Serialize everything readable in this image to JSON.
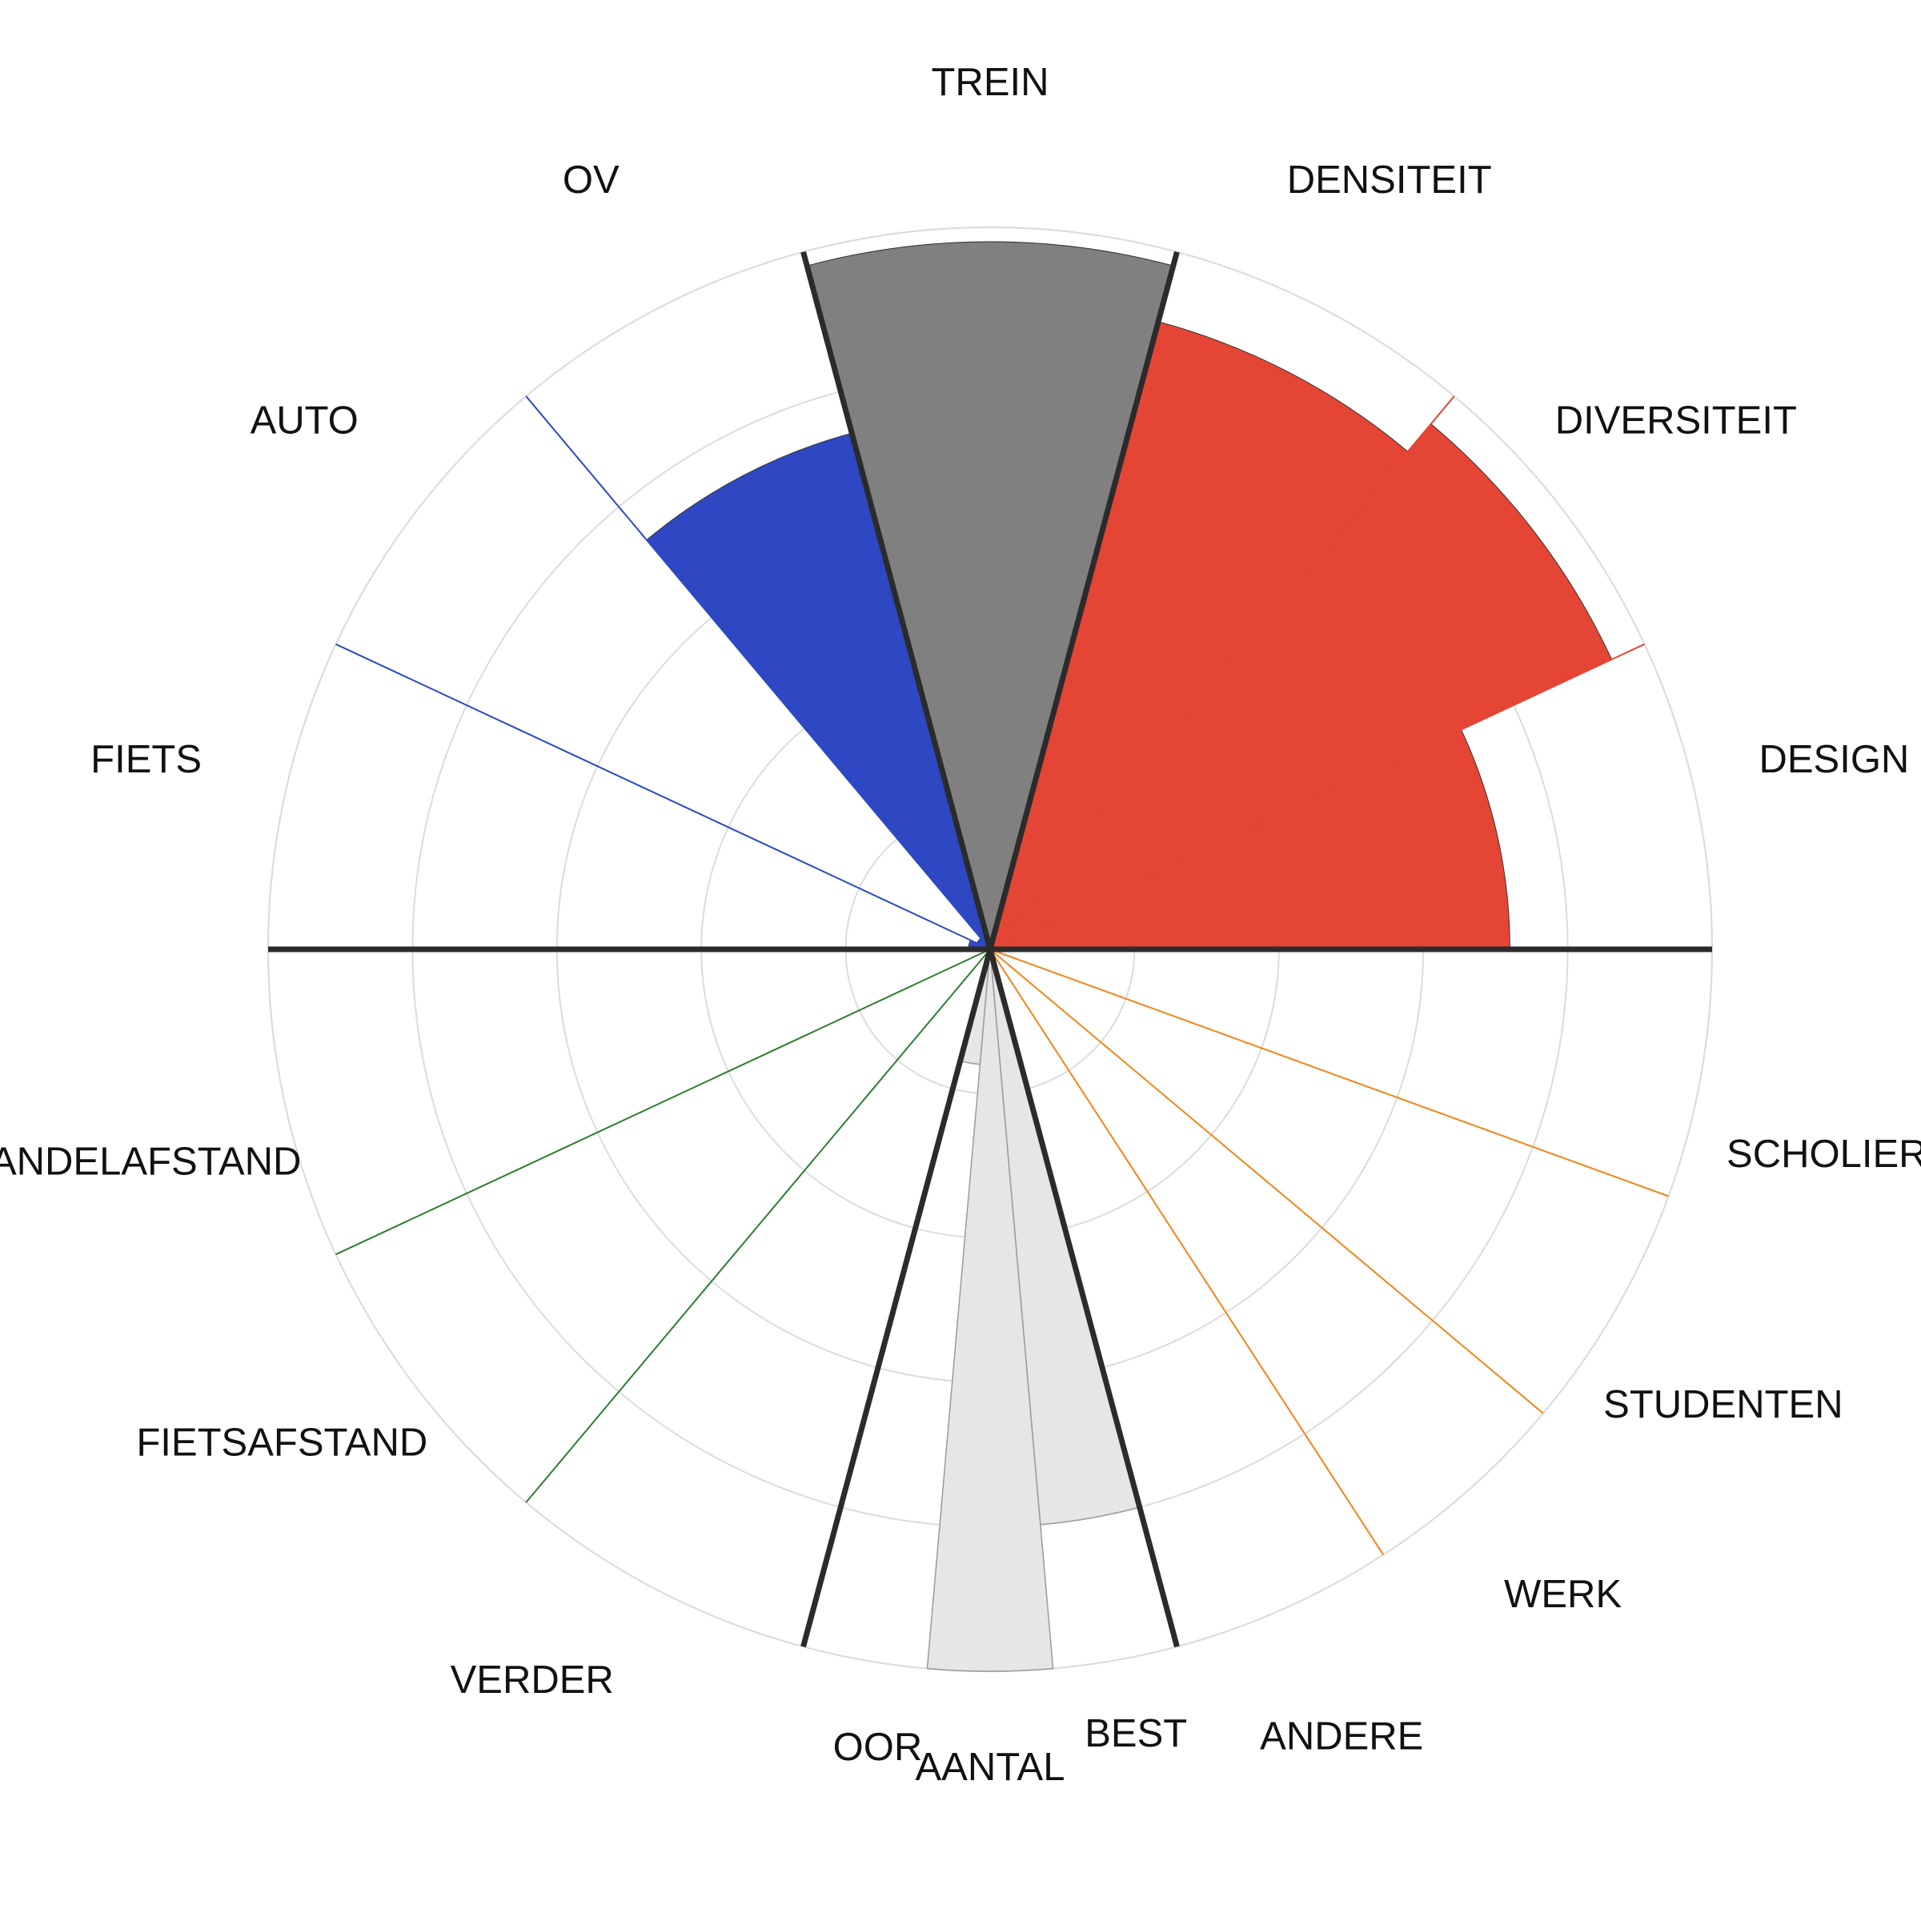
{
  "chart_data": {
    "type": "polar-bar",
    "rmax": 5,
    "grid_rings": [
      1,
      2,
      3,
      4,
      5
    ],
    "categories": [
      {
        "label": "TREIN",
        "value": 4.9,
        "color": "#808080",
        "group": "trein"
      },
      {
        "label": "OV",
        "value": 3.7,
        "color": "#2d48c2",
        "group": "mode"
      },
      {
        "label": "AUTO",
        "value": 0.1,
        "color": "#2d48c2",
        "group": "mode"
      },
      {
        "label": "FIETS",
        "value": 0.15,
        "color": "#2d48c2",
        "group": "mode"
      },
      {
        "label": "DENSITEIT",
        "value": 4.5,
        "color": "#e54535",
        "group": "build"
      },
      {
        "label": "DIVERSITEIT",
        "value": 4.75,
        "color": "#e54535",
        "group": "build"
      },
      {
        "label": "DESIGN",
        "value": 3.6,
        "color": "#e54535",
        "group": "build"
      },
      {
        "label": "SCHOLIEREN",
        "value": 0,
        "color": "#f28518",
        "group": "doel"
      },
      {
        "label": "STUDENTEN",
        "value": 0,
        "color": "#f28518",
        "group": "doel"
      },
      {
        "label": "WERK",
        "value": 0,
        "color": "#f28518",
        "group": "doel"
      },
      {
        "label": "ANDERE",
        "value": 0,
        "color": "#f28518",
        "group": "doel"
      },
      {
        "label": "WANDELAFSTAND",
        "value": 0,
        "color": "#2e7d32",
        "group": "afstand"
      },
      {
        "label": "FIETSAFSTAND",
        "value": 0,
        "color": "#2e7d32",
        "group": "afstand"
      },
      {
        "label": "VERDER",
        "value": 0,
        "color": "#2e7d32",
        "group": "afstand"
      },
      {
        "label": "OOR",
        "value": 0.8,
        "color": "#e6e6e6",
        "group": "aantal"
      },
      {
        "label": "AANTAL",
        "value": 5,
        "color": "#e6e6e6",
        "group": "aantal"
      },
      {
        "label": "BEST",
        "value": 4,
        "color": "#e6e6e6",
        "group": "aantal"
      }
    ]
  }
}
